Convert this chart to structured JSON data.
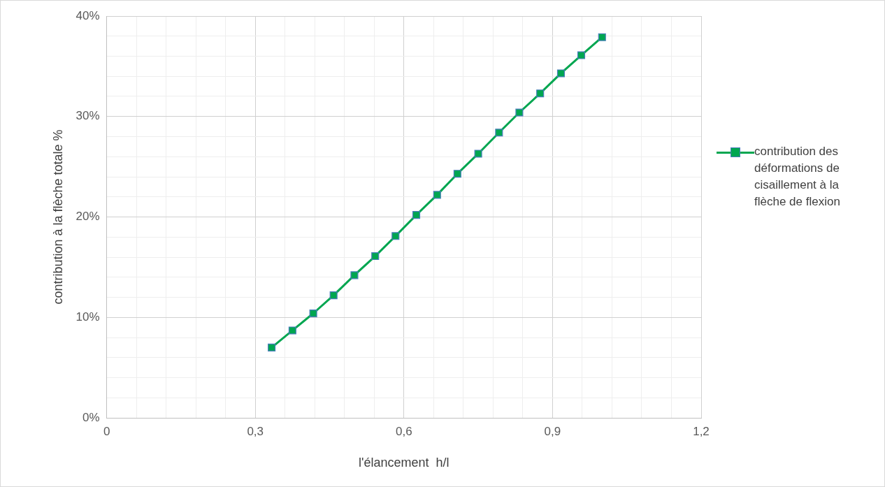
{
  "chart_data": {
    "type": "line",
    "xlabel": "l'élancement  h/l",
    "ylabel": "contribution à la flèche totale %",
    "x": [
      0.333,
      0.375,
      0.417,
      0.458,
      0.5,
      0.542,
      0.583,
      0.625,
      0.667,
      0.708,
      0.75,
      0.792,
      0.833,
      0.875,
      0.917,
      0.958,
      1.0
    ],
    "series": [
      {
        "name": "contribution des déformations de cisaillement à la flèche de flexion",
        "color": "#00a650",
        "values": [
          7.0,
          8.7,
          10.4,
          12.2,
          14.2,
          16.1,
          18.1,
          20.2,
          22.2,
          24.3,
          26.3,
          28.4,
          30.4,
          32.3,
          34.3,
          36.1,
          37.9
        ]
      }
    ],
    "xlim": [
      0,
      1.2
    ],
    "xticks": [
      0,
      {
        "value": 0.06,
        "label": null
      },
      {
        "value": 0.12,
        "label": null
      },
      {
        "value": 0.18,
        "label": null
      },
      {
        "value": 0.24,
        "label": null
      },
      {
        "value": 0.3,
        "label": "0,3"
      },
      {
        "value": 0.36,
        "label": null
      },
      {
        "value": 0.42,
        "label": null
      },
      {
        "value": 0.48,
        "label": null
      },
      {
        "value": 0.54,
        "label": null
      },
      {
        "value": 0.6,
        "label": "0,6"
      },
      {
        "value": 0.66,
        "label": null
      },
      {
        "value": 0.72,
        "label": null
      },
      {
        "value": 0.78,
        "label": null
      },
      {
        "value": 0.84,
        "label": null
      },
      {
        "value": 0.9,
        "label": "0,9"
      },
      {
        "value": 0.96,
        "label": null
      },
      {
        "value": 1.02,
        "label": null
      },
      {
        "value": 1.08,
        "label": null
      },
      {
        "value": 1.14,
        "label": null
      },
      {
        "value": 1.2,
        "label": "1,2"
      }
    ],
    "ylim": [
      0,
      40
    ],
    "yticks": [
      {
        "value": 0,
        "label": "0%"
      },
      {
        "value": 2,
        "label": null
      },
      {
        "value": 4,
        "label": null
      },
      {
        "value": 6,
        "label": null
      },
      {
        "value": 8,
        "label": null
      },
      {
        "value": 10,
        "label": "10%"
      },
      {
        "value": 12,
        "label": null
      },
      {
        "value": 14,
        "label": null
      },
      {
        "value": 16,
        "label": null
      },
      {
        "value": 18,
        "label": null
      },
      {
        "value": 20,
        "label": "20%"
      },
      {
        "value": 22,
        "label": null
      },
      {
        "value": 24,
        "label": null
      },
      {
        "value": 26,
        "label": null
      },
      {
        "value": 28,
        "label": null
      },
      {
        "value": 30,
        "label": "30%"
      },
      {
        "value": 32,
        "label": null
      },
      {
        "value": 34,
        "label": null
      },
      {
        "value": 36,
        "label": null
      },
      {
        "value": 38,
        "label": null
      },
      {
        "value": 40,
        "label": "40%"
      }
    ],
    "grid": true,
    "legend": "right",
    "marker": "square",
    "line_style": "solid"
  }
}
